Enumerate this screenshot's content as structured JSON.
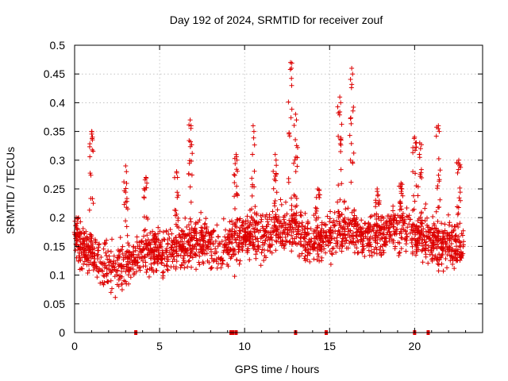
{
  "chart_data": {
    "type": "scatter",
    "title": "Day 192 of 2024, SRMTID for receiver zouf",
    "xlabel": "GPS time / hours",
    "ylabel": "SRMTID / TECUs",
    "xlim": [
      0,
      24
    ],
    "ylim": [
      0,
      0.5
    ],
    "x_ticks": [
      0,
      5,
      10,
      15,
      20
    ],
    "x_tick_labels": [
      "0",
      "5",
      "10",
      "15",
      "20"
    ],
    "y_ticks": [
      0,
      0.05,
      0.1,
      0.15,
      0.2,
      0.25,
      0.3,
      0.35,
      0.4,
      0.45,
      0.5
    ],
    "y_tick_labels": [
      "0",
      "0.05",
      "0.1",
      "0.15",
      "0.2",
      "0.25",
      "0.3",
      "0.35",
      "0.4",
      "0.45",
      "0.5"
    ],
    "grid": true,
    "marker": "plus",
    "color": "#dd0000",
    "series": [
      {
        "name": "SRMTID",
        "trend": [
          [
            0.0,
            0.16
          ],
          [
            0.5,
            0.15
          ],
          [
            1.0,
            0.14
          ],
          [
            1.5,
            0.12
          ],
          [
            2.0,
            0.11
          ],
          [
            2.5,
            0.11
          ],
          [
            3.0,
            0.12
          ],
          [
            3.5,
            0.13
          ],
          [
            4.0,
            0.14
          ],
          [
            4.5,
            0.14
          ],
          [
            5.0,
            0.14
          ],
          [
            5.5,
            0.15
          ],
          [
            6.0,
            0.15
          ],
          [
            6.5,
            0.15
          ],
          [
            7.0,
            0.16
          ],
          [
            7.5,
            0.16
          ],
          [
            8.0,
            0.15
          ],
          [
            8.5,
            0.14
          ],
          [
            9.0,
            0.15
          ],
          [
            9.5,
            0.16
          ],
          [
            10.0,
            0.17
          ],
          [
            10.5,
            0.17
          ],
          [
            11.0,
            0.17
          ],
          [
            11.5,
            0.17
          ],
          [
            12.0,
            0.18
          ],
          [
            12.5,
            0.18
          ],
          [
            13.0,
            0.18
          ],
          [
            13.5,
            0.17
          ],
          [
            14.0,
            0.16
          ],
          [
            14.5,
            0.16
          ],
          [
            15.0,
            0.17
          ],
          [
            15.5,
            0.18
          ],
          [
            16.0,
            0.18
          ],
          [
            16.5,
            0.18
          ],
          [
            17.0,
            0.17
          ],
          [
            17.5,
            0.17
          ],
          [
            18.0,
            0.17
          ],
          [
            18.5,
            0.18
          ],
          [
            19.0,
            0.18
          ],
          [
            19.5,
            0.18
          ],
          [
            20.0,
            0.17
          ],
          [
            20.5,
            0.17
          ],
          [
            21.0,
            0.16
          ],
          [
            21.5,
            0.15
          ],
          [
            22.0,
            0.15
          ],
          [
            22.5,
            0.15
          ],
          [
            22.9,
            0.15
          ]
        ],
        "peaks": [
          [
            0.1,
            0.2
          ],
          [
            1.0,
            0.35
          ],
          [
            3.0,
            0.29
          ],
          [
            4.2,
            0.27
          ],
          [
            6.0,
            0.28
          ],
          [
            6.8,
            0.37
          ],
          [
            9.5,
            0.31
          ],
          [
            10.5,
            0.36
          ],
          [
            11.8,
            0.31
          ],
          [
            12.7,
            0.47
          ],
          [
            13.0,
            0.38
          ],
          [
            14.3,
            0.25
          ],
          [
            15.6,
            0.41
          ],
          [
            16.3,
            0.46
          ],
          [
            17.8,
            0.25
          ],
          [
            19.2,
            0.26
          ],
          [
            20.0,
            0.34
          ],
          [
            20.3,
            0.33
          ],
          [
            21.4,
            0.36
          ],
          [
            22.6,
            0.3
          ]
        ],
        "spread": 0.09,
        "count": 2000
      }
    ],
    "zero_markers_x": [
      3.6,
      9.2,
      9.3,
      9.5,
      13.0,
      14.8,
      20.0,
      20.8
    ]
  }
}
